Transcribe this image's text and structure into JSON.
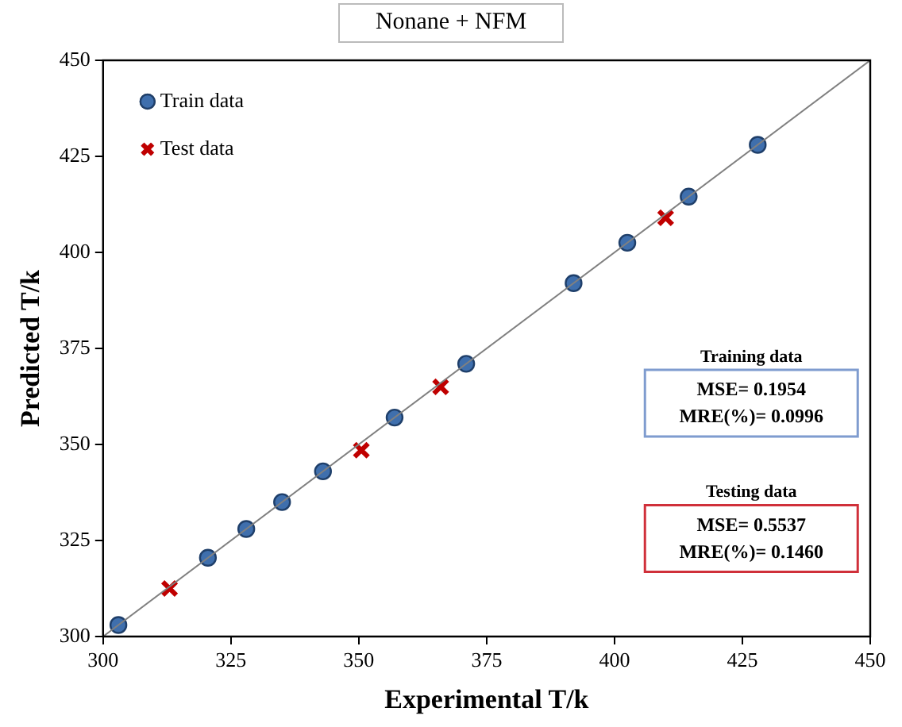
{
  "chart_data": {
    "type": "scatter",
    "title": "Nonane + NFM",
    "xlabel": "Experimental T/k",
    "ylabel": "Predicted T/k",
    "xlim": [
      300,
      450
    ],
    "xticks": [
      300,
      325,
      350,
      375,
      400,
      425,
      450
    ],
    "ylim": [
      300,
      450
    ],
    "yticks": [
      300,
      325,
      350,
      375,
      400,
      425,
      450
    ],
    "legend": "top left",
    "series": [
      {
        "type": "line",
        "color": "#808080",
        "x": [
          300,
          450
        ],
        "values": [
          300,
          450
        ],
        "marker": "none",
        "line_style": "solid"
      },
      {
        "name": "Train data",
        "color": "#3f6fad",
        "marker": "circle",
        "x": [
          303,
          320.5,
          328,
          335,
          343,
          357,
          371,
          392,
          402.5,
          414.5,
          428
        ],
        "values": [
          303,
          320.5,
          328,
          335,
          343,
          357,
          371,
          392,
          402.5,
          414.5,
          428
        ]
      },
      {
        "name": "Test data",
        "color": "#c00000",
        "marker": "cross",
        "x": [
          313,
          350.5,
          366,
          410
        ],
        "values": [
          312.5,
          348.5,
          365,
          409
        ]
      }
    ],
    "annotations": [
      "Training data",
      "MSE= 0.1954",
      "MRE(%)= 0.0996",
      "Testing data",
      "MSE= 0.5537",
      "MRE(%)= 0.1460"
    ]
  }
}
